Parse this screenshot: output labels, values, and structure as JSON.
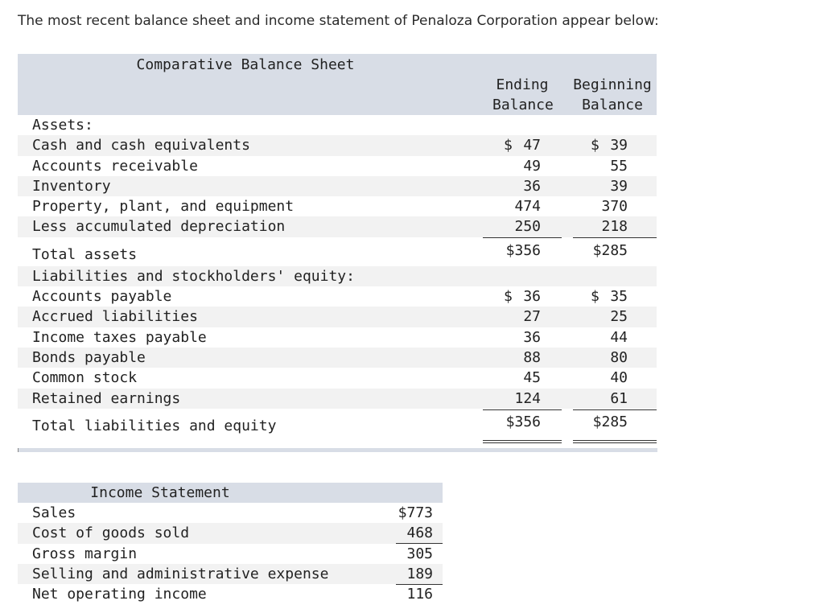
{
  "intro": "The most recent balance sheet and income statement of Penaloza Corporation appear below:",
  "balance_sheet": {
    "title": "Comparative Balance Sheet",
    "col_ending": [
      "Ending",
      "Balance"
    ],
    "col_beginning": [
      "Beginning",
      "Balance"
    ],
    "assets_header": "Assets:",
    "assets": [
      {
        "label": "Cash and cash equivalents",
        "end": "47",
        "beg": "39",
        "dollar": true
      },
      {
        "label": "Accounts receivable",
        "end": "49",
        "beg": "55"
      },
      {
        "label": "Inventory",
        "end": "36",
        "beg": "39"
      },
      {
        "label": "Property, plant, and equipment",
        "end": "474",
        "beg": "370"
      },
      {
        "label": "Less accumulated depreciation",
        "end": "250",
        "beg": "218"
      }
    ],
    "total_assets": {
      "label": "Total assets",
      "end": "$356",
      "beg": "$285"
    },
    "liab_header": "Liabilities and stockholders' equity:",
    "liabilities": [
      {
        "label": "Accounts payable",
        "end": "36",
        "beg": "35",
        "dollar": true
      },
      {
        "label": "Accrued liabilities",
        "end": "27",
        "beg": "25"
      },
      {
        "label": "Income taxes payable",
        "end": "36",
        "beg": "44"
      },
      {
        "label": "Bonds payable",
        "end": "88",
        "beg": "80"
      },
      {
        "label": "Common stock",
        "end": "45",
        "beg": "40"
      },
      {
        "label": "Retained earnings",
        "end": "124",
        "beg": "61"
      }
    ],
    "total_liab": {
      "label": "Total liabilities and equity",
      "end": "$356",
      "beg": "$285"
    },
    "dollar_sign": "$"
  },
  "income_statement": {
    "title": "Income Statement",
    "rows": [
      {
        "label": "Sales",
        "value": "$773"
      },
      {
        "label": "Cost of goods sold",
        "value": "468"
      },
      {
        "label": "Gross margin",
        "value": "305"
      },
      {
        "label": "Selling and administrative expense",
        "value": "189"
      },
      {
        "label": "Net operating income",
        "value": "116"
      }
    ]
  }
}
